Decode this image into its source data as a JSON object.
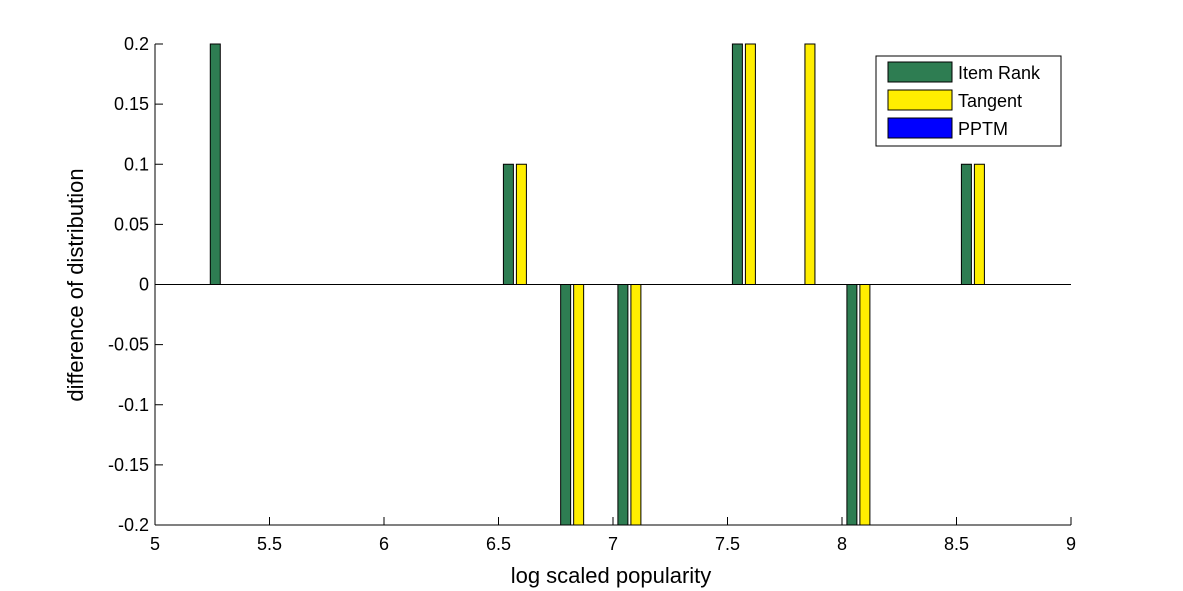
{
  "chart_data": {
    "type": "bar",
    "xlabel": "log scaled popularity",
    "ylabel": "difference of distribution",
    "xlim": [
      5,
      9
    ],
    "ylim": [
      -0.2,
      0.2
    ],
    "x_ticks": [
      5,
      5.5,
      6,
      6.5,
      7,
      7.5,
      8,
      8.5,
      9
    ],
    "x_tick_labels": [
      "5",
      "5.5",
      "6",
      "6.5",
      "7",
      "7.5",
      "8",
      "8.5",
      "9"
    ],
    "y_ticks": [
      -0.2,
      -0.15,
      -0.1,
      -0.05,
      0,
      0.05,
      0.1,
      0.15,
      0.2
    ],
    "y_tick_labels": [
      "-0.2",
      "-0.15",
      "-0.1",
      "-0.05",
      "0",
      "0.05",
      "0.1",
      "0.15",
      "0.2"
    ],
    "x": [
      5.32,
      6.6,
      6.85,
      7.1,
      7.6,
      7.86,
      8.1,
      8.6
    ],
    "series": [
      {
        "name": "Item Rank",
        "color": "#2e7d52",
        "values": [
          0.2,
          0.1,
          -0.2,
          -0.2,
          0.2,
          0,
          -0.2,
          0.1
        ]
      },
      {
        "name": "Tangent",
        "color": "#ffee00",
        "values": [
          0,
          0.1,
          -0.2,
          -0.2,
          0.2,
          0.2,
          -0.2,
          0.1
        ]
      },
      {
        "name": "PPTM",
        "color": "#0000ff",
        "values": [
          0,
          0,
          0,
          0,
          0,
          0,
          0,
          0
        ]
      }
    ],
    "legend_position": "top-right",
    "grid": false
  }
}
